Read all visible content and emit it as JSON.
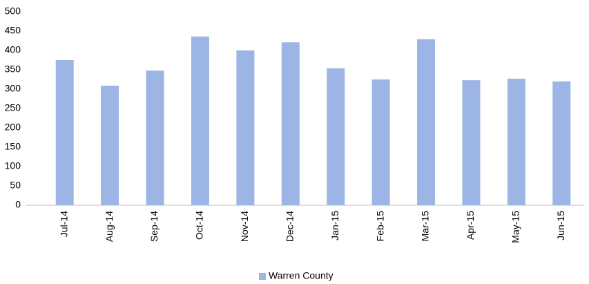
{
  "chart_data": {
    "type": "bar",
    "categories": [
      "Jul-14",
      "Aug-14",
      "Sep-14",
      "Oct-14",
      "Nov-14",
      "Dec-14",
      "Jan-15",
      "Feb-15",
      "Mar-15",
      "Apr-15",
      "May-15",
      "Jun-15"
    ],
    "series": [
      {
        "name": "Warren County",
        "color": "#9db5e4",
        "values": [
          375,
          309,
          348,
          436,
          400,
          421,
          354,
          325,
          429,
          323,
          327,
          320
        ]
      }
    ],
    "ylim": [
      0,
      500
    ],
    "yticks": [
      0,
      50,
      100,
      150,
      200,
      250,
      300,
      350,
      400,
      450,
      500
    ],
    "grid": false,
    "legend": "bottom"
  }
}
